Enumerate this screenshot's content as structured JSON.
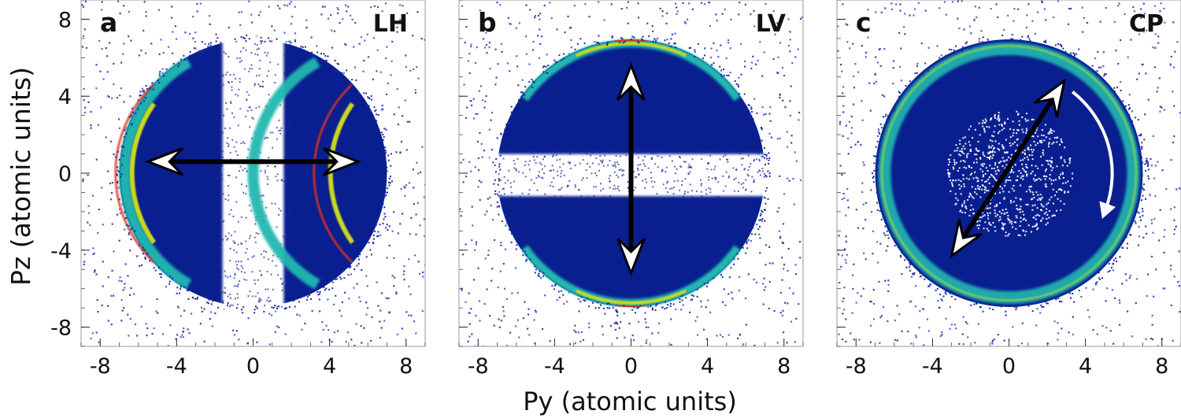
{
  "figure": {
    "y_axis_label": "Pz (atomic units)",
    "x_axis_label": "Py (atomic units)",
    "panels": [
      {
        "letter": "a",
        "polarization": "LH"
      },
      {
        "letter": "b",
        "polarization": "LV"
      },
      {
        "letter": "c",
        "polarization": "CP"
      }
    ]
  },
  "chart_data": [
    {
      "type": "heatmap",
      "title": "",
      "panel_letter": "a",
      "tag": "LH",
      "xlabel": "",
      "ylabel": "Pz (atomic units)",
      "xlim": [
        -9,
        9
      ],
      "ylim": [
        -9,
        9
      ],
      "xticks": [
        -8,
        -4,
        0,
        4,
        8
      ],
      "yticks": [
        -8,
        -4,
        0,
        4,
        8
      ],
      "xtick_labels": [
        "-8",
        "-4",
        "0",
        "4",
        "8"
      ],
      "ytick_labels": [
        "8",
        "4",
        "0",
        "-4",
        "-8"
      ],
      "ring_radius": 7.0,
      "distribution": "cos2 along Py (dipole along horizontal)",
      "arrow": {
        "kind": "double-headed",
        "from": [
          -5.5,
          0.6
        ],
        "to": [
          5.5,
          0.6
        ]
      },
      "colors": {
        "low": "#0a1f8f",
        "mid": "#20b8b0",
        "high": "#e6301b",
        "sparse": "#1c2aa0"
      }
    },
    {
      "type": "heatmap",
      "title": "",
      "panel_letter": "b",
      "tag": "LV",
      "xlabel": "Py (atomic units)",
      "ylabel": "",
      "xlim": [
        -9,
        9
      ],
      "ylim": [
        -9,
        9
      ],
      "xticks": [
        -8,
        -4,
        0,
        4,
        8
      ],
      "xtick_labels": [
        "-8",
        "-4",
        "0",
        "4",
        "8"
      ],
      "ring_radius": 7.0,
      "distribution": "cos2 along Pz (dipole along vertical)",
      "arrow": {
        "kind": "double-headed",
        "from": [
          0,
          5.6
        ],
        "to": [
          0,
          -5.2
        ]
      },
      "colors": {
        "low": "#0a1f8f",
        "mid": "#20b8b0",
        "high": "#e6301b",
        "sparse": "#1c2aa0"
      }
    },
    {
      "type": "heatmap",
      "title": "",
      "panel_letter": "c",
      "tag": "CP",
      "xlabel": "",
      "ylabel": "",
      "xlim": [
        -9,
        9
      ],
      "ylim": [
        -9,
        9
      ],
      "xticks": [
        -8,
        -4,
        0,
        4,
        8
      ],
      "xtick_labels": [
        "-8",
        "-4",
        "0",
        "4",
        "8"
      ],
      "ring_radius": 7.0,
      "distribution": "isotropic ring",
      "arrow": {
        "kind": "double-headed",
        "from": [
          -3.0,
          -4.3
        ],
        "to": [
          2.9,
          4.8
        ]
      },
      "rotation_arrow": {
        "direction": "clockwise"
      },
      "colors": {
        "low": "#0a1f8f",
        "mid": "#20b8b0",
        "high": "#e6301b",
        "sparse": "#1c2aa0"
      }
    }
  ]
}
